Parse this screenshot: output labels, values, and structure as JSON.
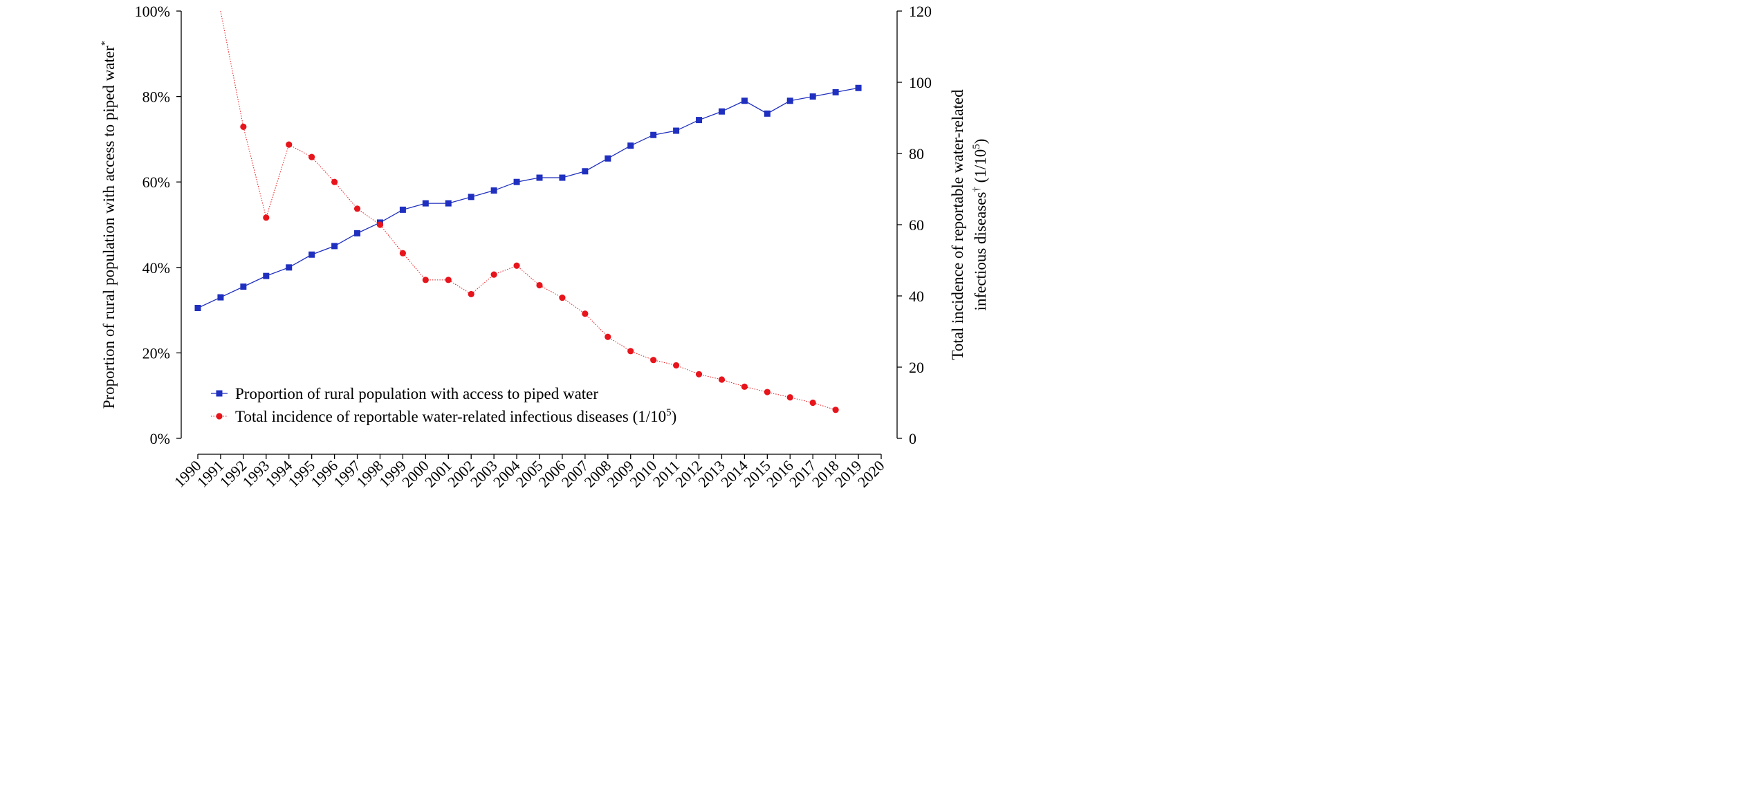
{
  "chart_data": {
    "type": "line",
    "x": [
      1990,
      1991,
      1992,
      1993,
      1994,
      1995,
      1996,
      1997,
      1998,
      1999,
      2000,
      2001,
      2002,
      2003,
      2004,
      2005,
      2006,
      2007,
      2008,
      2009,
      2010,
      2011,
      2012,
      2013,
      2014,
      2015,
      2016,
      2017,
      2018,
      2019
    ],
    "x_tick_labels": [
      "1990",
      "1991",
      "1992",
      "1993",
      "1994",
      "1995",
      "1996",
      "1997",
      "1998",
      "1999",
      "2000",
      "2001",
      "2002",
      "2003",
      "2004",
      "2005",
      "2006",
      "2007",
      "2008",
      "2009",
      "2010",
      "2011",
      "2012",
      "2013",
      "2014",
      "2015",
      "2016",
      "2017",
      "2018",
      "2019",
      "2020"
    ],
    "xlim": [
      1990,
      2020
    ],
    "left_axis": {
      "label": "Proportion of rural population with access to piped water",
      "label_sup": "*",
      "ylim": [
        0,
        100
      ],
      "tick_labels": [
        "0%",
        "20%",
        "40%",
        "60%",
        "80%",
        "100%"
      ]
    },
    "right_axis": {
      "label_line1": "Total incidence of reportable water-related",
      "label_line2": "infectious diseases",
      "label_sup": "†",
      "label_unit": " (1/10",
      "label_unit_sup": "5",
      "label_unit_end": ")",
      "ylim": [
        0,
        120
      ],
      "tick_labels": [
        "0",
        "20",
        "40",
        "60",
        "80",
        "100",
        "120"
      ]
    },
    "series": [
      {
        "name": "Proportion of rural population with access to piped water",
        "axis": "left",
        "color": "#1f2fbf",
        "marker": "square",
        "line_style": "solid",
        "x": [
          1990,
          1991,
          1992,
          1993,
          1994,
          1995,
          1996,
          1997,
          1998,
          1999,
          2000,
          2001,
          2002,
          2003,
          2004,
          2005,
          2006,
          2007,
          2008,
          2009,
          2010,
          2011,
          2012,
          2013,
          2014,
          2015,
          2016,
          2017,
          2018,
          2019
        ],
        "values": [
          30.5,
          33,
          35.5,
          38,
          40,
          43,
          45,
          48,
          50.5,
          53.5,
          55,
          55,
          56.5,
          58,
          60,
          61,
          61,
          62.5,
          65.5,
          68.5,
          71,
          72,
          74.5,
          76.5,
          79,
          76,
          79,
          80,
          81,
          82
        ]
      },
      {
        "name": "Total incidence of reportable water-related infectious diseases (1/10",
        "name_sup": "5",
        "name_end": ")",
        "axis": "right",
        "color": "#e8141b",
        "marker": "circle",
        "line_style": "dotted",
        "x": [
          1991,
          1992,
          1993,
          1994,
          1995,
          1996,
          1997,
          1998,
          1999,
          2000,
          2001,
          2002,
          2003,
          2004,
          2005,
          2006,
          2007,
          2008,
          2009,
          2010,
          2011,
          2012,
          2013,
          2014,
          2015,
          2016,
          2017,
          2018
        ],
        "values": [
          120,
          87.5,
          62,
          82.5,
          79,
          72,
          64.5,
          60,
          52,
          44.5,
          44.5,
          40.5,
          46,
          48.5,
          43,
          39.5,
          35,
          28.5,
          24.5,
          22,
          20.5,
          18,
          16.5,
          14.5,
          13,
          11.5,
          10,
          8
        ]
      }
    ],
    "legend_position": "lower-left",
    "grid": false
  }
}
